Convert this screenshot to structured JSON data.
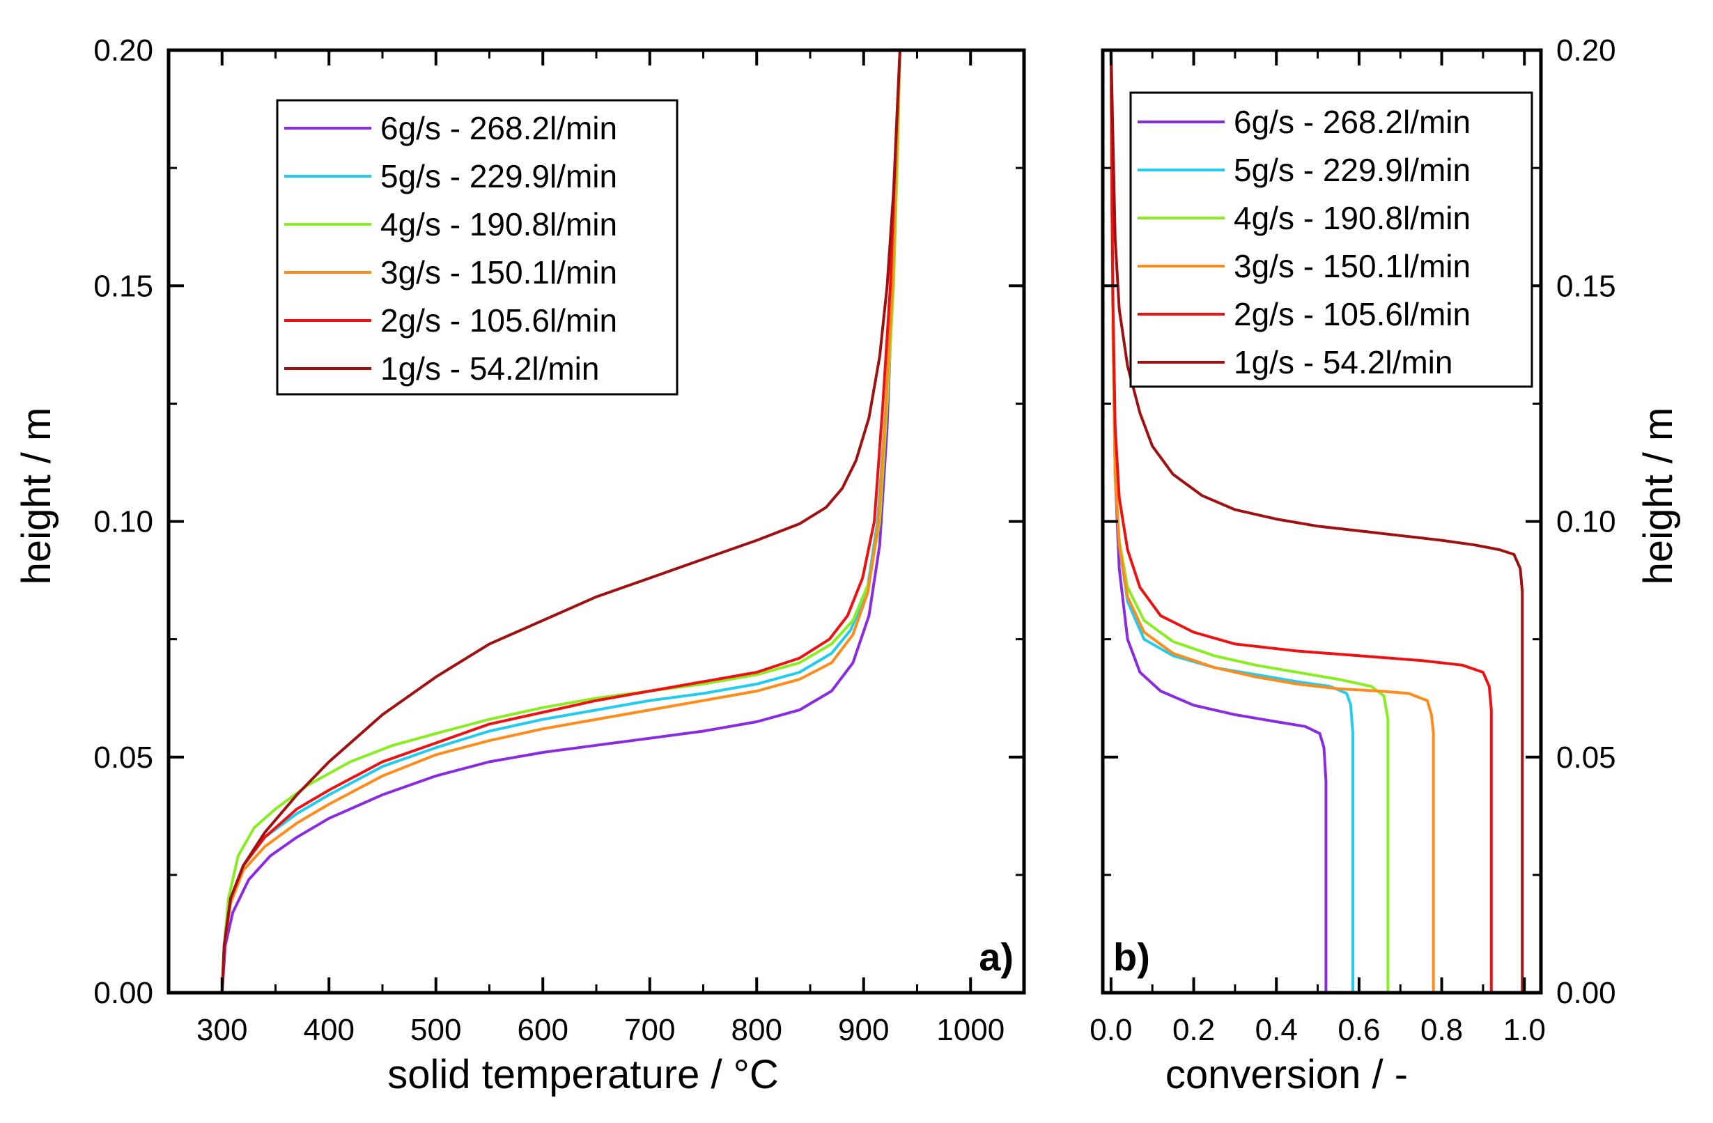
{
  "chart_data": [
    {
      "type": "line",
      "panel_label": "a)",
      "xlabel": "solid temperature / °C",
      "ylabel": "height / m",
      "xlim": [
        250,
        1050
      ],
      "ylim": [
        0.0,
        0.2
      ],
      "xticks": [
        "300",
        "400",
        "500",
        "600",
        "700",
        "800",
        "900",
        "1000"
      ],
      "yticks": [
        "0.00",
        "0.05",
        "0.10",
        "0.15",
        "0.20"
      ],
      "legend_position": "top-left",
      "series": [
        {
          "name": "6g/s - 268.2l/min",
          "color": "#8a2be2",
          "x": [
            300,
            303,
            310,
            325,
            345,
            370,
            400,
            450,
            500,
            550,
            600,
            650,
            700,
            750,
            800,
            840,
            870,
            890,
            905,
            915,
            922,
            927,
            931,
            934
          ],
          "y": [
            0.0,
            0.01,
            0.017,
            0.024,
            0.029,
            0.033,
            0.037,
            0.042,
            0.046,
            0.049,
            0.051,
            0.0525,
            0.054,
            0.0555,
            0.0575,
            0.06,
            0.064,
            0.07,
            0.08,
            0.095,
            0.12,
            0.15,
            0.18,
            0.2
          ]
        },
        {
          "name": "5g/s - 229.9l/min",
          "color": "#22ccee",
          "x": [
            300,
            302,
            308,
            320,
            340,
            370,
            400,
            450,
            500,
            550,
            600,
            650,
            700,
            750,
            800,
            840,
            870,
            888,
            903,
            913,
            921,
            927,
            931,
            934
          ],
          "y": [
            0.0,
            0.01,
            0.02,
            0.027,
            0.033,
            0.038,
            0.042,
            0.048,
            0.052,
            0.0555,
            0.058,
            0.06,
            0.062,
            0.0635,
            0.0655,
            0.068,
            0.072,
            0.077,
            0.085,
            0.1,
            0.125,
            0.15,
            0.18,
            0.2
          ]
        },
        {
          "name": "4g/s - 190.8l/min",
          "color": "#88ee22",
          "x": [
            300,
            302,
            306,
            315,
            330,
            350,
            380,
            420,
            460,
            500,
            550,
            600,
            650,
            700,
            750,
            800,
            840,
            870,
            890,
            905,
            915,
            922,
            928,
            932,
            934
          ],
          "y": [
            0.0,
            0.01,
            0.02,
            0.029,
            0.035,
            0.039,
            0.044,
            0.049,
            0.0525,
            0.055,
            0.058,
            0.0605,
            0.0625,
            0.064,
            0.0655,
            0.0675,
            0.07,
            0.074,
            0.079,
            0.087,
            0.1,
            0.125,
            0.15,
            0.18,
            0.2
          ]
        },
        {
          "name": "3g/s - 150.1l/min",
          "color": "#ff8c1a",
          "x": [
            300,
            302,
            308,
            320,
            340,
            370,
            400,
            450,
            500,
            550,
            600,
            650,
            700,
            750,
            800,
            840,
            870,
            890,
            904,
            914,
            921,
            927,
            931,
            934
          ],
          "y": [
            0.0,
            0.01,
            0.019,
            0.026,
            0.031,
            0.036,
            0.04,
            0.046,
            0.0505,
            0.0535,
            0.056,
            0.058,
            0.06,
            0.062,
            0.064,
            0.0665,
            0.07,
            0.076,
            0.085,
            0.1,
            0.125,
            0.15,
            0.18,
            0.2
          ]
        },
        {
          "name": "2g/s - 105.6l/min",
          "color": "#ee1111",
          "x": [
            300,
            302,
            308,
            320,
            340,
            370,
            400,
            450,
            500,
            550,
            600,
            650,
            700,
            750,
            800,
            840,
            868,
            885,
            899,
            910,
            918,
            925,
            930,
            934
          ],
          "y": [
            0.0,
            0.01,
            0.02,
            0.027,
            0.033,
            0.039,
            0.043,
            0.049,
            0.053,
            0.057,
            0.0595,
            0.062,
            0.064,
            0.066,
            0.068,
            0.071,
            0.075,
            0.08,
            0.088,
            0.1,
            0.125,
            0.15,
            0.18,
            0.2
          ]
        },
        {
          "name": "1g/s - 54.2l/min",
          "color": "#a01010",
          "x": [
            300,
            302,
            308,
            320,
            340,
            370,
            400,
            450,
            500,
            550,
            600,
            650,
            700,
            750,
            800,
            840,
            865,
            880,
            893,
            905,
            915,
            922,
            928,
            934
          ],
          "y": [
            0.0,
            0.01,
            0.02,
            0.027,
            0.034,
            0.042,
            0.049,
            0.059,
            0.067,
            0.074,
            0.079,
            0.084,
            0.088,
            0.092,
            0.096,
            0.0995,
            0.103,
            0.107,
            0.113,
            0.122,
            0.135,
            0.15,
            0.17,
            0.2
          ]
        }
      ]
    },
    {
      "type": "line",
      "panel_label": "b)",
      "xlabel": "conversion / -",
      "ylabel": "height / m",
      "xlim": [
        -0.02,
        1.04
      ],
      "ylim": [
        0.0,
        0.2
      ],
      "xticks": [
        "0.0",
        "0.2",
        "0.4",
        "0.6",
        "0.8",
        "1.0"
      ],
      "yticks": [
        "0.00",
        "0.05",
        "0.10",
        "0.15",
        "0.20"
      ],
      "legend_position": "top-right",
      "series": [
        {
          "name": "6g/s - 268.2l/min",
          "color": "#8a2be2",
          "x": [
            0.0,
            0.002,
            0.005,
            0.01,
            0.02,
            0.04,
            0.07,
            0.12,
            0.2,
            0.3,
            0.4,
            0.47,
            0.505,
            0.515,
            0.52,
            0.52
          ],
          "y": [
            0.2,
            0.17,
            0.14,
            0.11,
            0.09,
            0.075,
            0.068,
            0.064,
            0.061,
            0.059,
            0.0575,
            0.0565,
            0.055,
            0.052,
            0.045,
            0.0
          ]
        },
        {
          "name": "5g/s - 229.9l/min",
          "color": "#22ccee",
          "x": [
            0.0,
            0.002,
            0.005,
            0.01,
            0.02,
            0.04,
            0.08,
            0.15,
            0.25,
            0.35,
            0.45,
            0.53,
            0.57,
            0.58,
            0.585,
            0.585
          ],
          "y": [
            0.2,
            0.17,
            0.14,
            0.11,
            0.095,
            0.083,
            0.075,
            0.0715,
            0.069,
            0.0675,
            0.066,
            0.065,
            0.0635,
            0.061,
            0.055,
            0.0
          ]
        },
        {
          "name": "4g/s - 190.8l/min",
          "color": "#88ee22",
          "x": [
            0.0,
            0.002,
            0.005,
            0.01,
            0.02,
            0.04,
            0.08,
            0.15,
            0.25,
            0.35,
            0.45,
            0.55,
            0.63,
            0.66,
            0.67,
            0.67
          ],
          "y": [
            0.2,
            0.17,
            0.14,
            0.11,
            0.096,
            0.086,
            0.079,
            0.0745,
            0.0715,
            0.0695,
            0.068,
            0.0665,
            0.065,
            0.063,
            0.058,
            0.0
          ]
        },
        {
          "name": "3g/s - 150.1l/min",
          "color": "#ff8c1a",
          "x": [
            0.0,
            0.002,
            0.005,
            0.01,
            0.02,
            0.04,
            0.08,
            0.15,
            0.25,
            0.35,
            0.45,
            0.55,
            0.65,
            0.72,
            0.765,
            0.775,
            0.78,
            0.78
          ],
          "y": [
            0.2,
            0.17,
            0.14,
            0.11,
            0.095,
            0.084,
            0.0765,
            0.072,
            0.069,
            0.067,
            0.0655,
            0.0645,
            0.064,
            0.0635,
            0.062,
            0.059,
            0.055,
            0.0
          ]
        },
        {
          "name": "2g/s - 105.6l/min",
          "color": "#ee1111",
          "x": [
            0.0,
            0.002,
            0.005,
            0.01,
            0.02,
            0.04,
            0.07,
            0.12,
            0.2,
            0.3,
            0.45,
            0.6,
            0.75,
            0.85,
            0.9,
            0.915,
            0.92,
            0.92
          ],
          "y": [
            0.2,
            0.17,
            0.145,
            0.12,
            0.105,
            0.094,
            0.086,
            0.08,
            0.0765,
            0.074,
            0.0725,
            0.0715,
            0.0705,
            0.0695,
            0.068,
            0.065,
            0.06,
            0.0
          ]
        },
        {
          "name": "1g/s - 54.2l/min",
          "color": "#a01010",
          "x": [
            0.0,
            0.005,
            0.01,
            0.02,
            0.04,
            0.07,
            0.1,
            0.15,
            0.22,
            0.3,
            0.4,
            0.5,
            0.6,
            0.7,
            0.8,
            0.88,
            0.94,
            0.975,
            0.99,
            0.995,
            0.995
          ],
          "y": [
            0.2,
            0.18,
            0.16,
            0.145,
            0.133,
            0.123,
            0.116,
            0.11,
            0.1055,
            0.1025,
            0.1005,
            0.099,
            0.098,
            0.097,
            0.096,
            0.095,
            0.094,
            0.093,
            0.09,
            0.085,
            0.0
          ]
        }
      ]
    }
  ]
}
